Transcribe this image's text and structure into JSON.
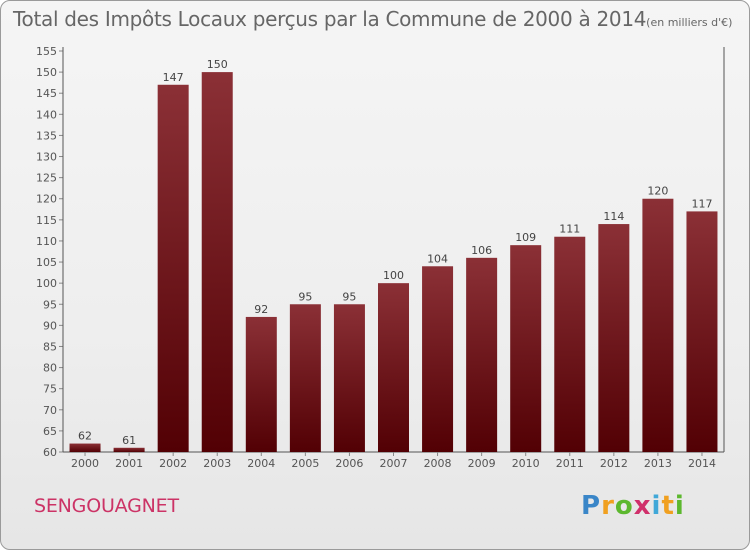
{
  "header": {
    "title": "Total des Impôts Locaux perçus par la Commune de 2000 à 2014",
    "unit": "(en milliers d'€)"
  },
  "footer": {
    "commune": "SENGOUAGNET",
    "logo_text": "Proxiti"
  },
  "colors": {
    "bar_top": "#8b3036",
    "bar_bottom": "#520004",
    "commune_text": "#cc3366",
    "axis_text": "#555555"
  },
  "chart_data": {
    "type": "bar",
    "title": "Total des Impôts Locaux perçus par la Commune de 2000 à 2014",
    "subtitle": "(en milliers d'€)",
    "xlabel": "",
    "ylabel": "",
    "categories": [
      "2000",
      "2001",
      "2002",
      "2003",
      "2004",
      "2005",
      "2006",
      "2007",
      "2008",
      "2009",
      "2010",
      "2011",
      "2012",
      "2013",
      "2014"
    ],
    "values": [
      62,
      61,
      147,
      150,
      92,
      95,
      95,
      100,
      104,
      106,
      109,
      111,
      114,
      120,
      117
    ],
    "ylim": [
      60,
      155
    ],
    "yticks": [
      60,
      65,
      70,
      75,
      80,
      85,
      90,
      95,
      100,
      105,
      110,
      115,
      120,
      125,
      130,
      135,
      140,
      145,
      150,
      155
    ],
    "grid": false,
    "legend": "none"
  }
}
